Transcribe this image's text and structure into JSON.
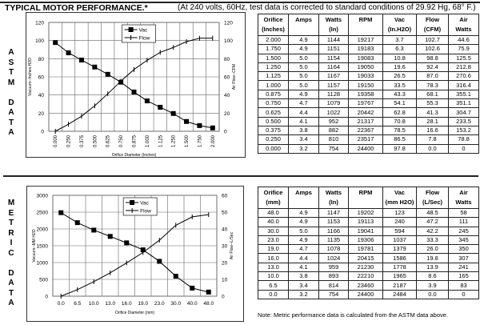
{
  "header": {
    "title": "TYPICAL MOTOR PERFORMANCE.*",
    "subtitle": "(At 240 volts, 60Hz, test data is corrected to standard conditions of 29.92 Hg, 68° F.)"
  },
  "astm": {
    "side_label": [
      "A",
      "S",
      "T",
      "M",
      "",
      "D",
      "A",
      "T",
      "A"
    ],
    "columns": [
      [
        "Orifice",
        "(Inches)"
      ],
      [
        "Amps",
        ""
      ],
      [
        "Watts",
        "(In)"
      ],
      [
        "RPM",
        ""
      ],
      [
        "Vac",
        "(In.H2O)"
      ],
      [
        "Flow",
        "(CFM)"
      ],
      [
        "Air",
        "Watts"
      ]
    ],
    "rows": [
      [
        "2.000",
        "4.9",
        "1144",
        "19217",
        "3.7",
        "102.7",
        "44.6"
      ],
      [
        "1.750",
        "4.9",
        "1151",
        "19183",
        "6.3",
        "102.6",
        "75.9"
      ],
      [
        "1.500",
        "5.0",
        "1154",
        "19083",
        "10.8",
        "98.8",
        "125.5"
      ],
      [
        "1.250",
        "5.0",
        "1164",
        "19050",
        "19.6",
        "92.4",
        "212.8"
      ],
      [
        "1.125",
        "5.0",
        "1167",
        "19033",
        "26.5",
        "87.0",
        "270.6"
      ],
      [
        "1.000",
        "5.0",
        "1157",
        "19150",
        "33.5",
        "78.3",
        "316.4"
      ],
      [
        "0.875",
        "4.9",
        "1128",
        "19358",
        "43.3",
        "68.1",
        "355.1"
      ],
      [
        "0.750",
        "4.7",
        "1079",
        "19767",
        "54.1",
        "55.3",
        "351.1"
      ],
      [
        "0.625",
        "4.4",
        "1022",
        "20442",
        "62.8",
        "41.3",
        "304.7"
      ],
      [
        "0.500",
        "4.1",
        "952",
        "21317",
        "70.8",
        "28.1",
        "233.5"
      ],
      [
        "0.375",
        "3.8",
        "882",
        "22367",
        "78.5",
        "16.6",
        "153.2"
      ],
      [
        "0.250",
        "3.4",
        "810",
        "23517",
        "86.5",
        "7.8",
        "78.8"
      ],
      [
        "0.000",
        "3.2",
        "754",
        "24400",
        "97.8",
        "0.0",
        "0"
      ]
    ]
  },
  "metric": {
    "side_label": [
      "M",
      "E",
      "T",
      "R",
      "I",
      "C",
      "",
      "D",
      "A",
      "T",
      "A"
    ],
    "columns": [
      [
        "Orifice",
        "(mm)"
      ],
      [
        "Amps",
        ""
      ],
      [
        "Watts",
        "(In)"
      ],
      [
        "RPM",
        ""
      ],
      [
        "Vac",
        "(mm H2O)"
      ],
      [
        "Flow",
        "(L/Sec)"
      ],
      [
        "Air",
        "Watts"
      ]
    ],
    "rows": [
      [
        "48.0",
        "4.9",
        "1147",
        "19202",
        "123",
        "48.5",
        "58"
      ],
      [
        "40.0",
        "4.9",
        "1153",
        "19113",
        "240",
        "47.2",
        "111"
      ],
      [
        "30.0",
        "5.0",
        "1166",
        "19041",
        "594",
        "42.2",
        "245"
      ],
      [
        "23.0",
        "4.9",
        "1135",
        "19306",
        "1037",
        "33.3",
        "345"
      ],
      [
        "19.0",
        "4.7",
        "1078",
        "19781",
        "1379",
        "26.0",
        "350"
      ],
      [
        "16.0",
        "4.4",
        "1024",
        "20415",
        "1586",
        "19.8",
        "307"
      ],
      [
        "13.0",
        "4.1",
        "959",
        "21230",
        "1778",
        "13.9",
        "241"
      ],
      [
        "10.0",
        "3.8",
        "893",
        "22210",
        "1965",
        "8.6",
        "165"
      ],
      [
        "6.5",
        "3.4",
        "814",
        "23460",
        "2187",
        "3.9",
        "83"
      ],
      [
        "0.0",
        "3.2",
        "754",
        "24400",
        "2484",
        "0.0",
        "0"
      ]
    ],
    "note": "Note:  Metric performance data is calculated from the ASTM data above."
  },
  "chart_data": [
    {
      "type": "line",
      "xlabel": "Orifice Diameter (Inches)",
      "ylabel": "Vacuum--Inches H2O",
      "y2label": "Air Flow--CFM",
      "ylim": [
        0,
        120
      ],
      "y2lim": [
        0,
        120
      ],
      "yticks": [
        "0",
        "20",
        "40",
        "60",
        "80",
        "100",
        "120"
      ],
      "y2ticks": [
        "0",
        "20",
        "40",
        "60",
        "80",
        "100",
        "120"
      ],
      "rotate_x": true,
      "categories": [
        "0.000",
        "0.250",
        "0.375",
        "0.500",
        "0.625",
        "0.750",
        "0.875",
        "1.000",
        "1.125",
        "1.250",
        "1.500",
        "1.750",
        "2.000"
      ],
      "series": [
        {
          "name": "Vac",
          "axis": "left",
          "marker": "square",
          "values": [
            97.8,
            86.5,
            78.5,
            70.8,
            62.8,
            54.1,
            43.3,
            33.5,
            26.5,
            19.6,
            10.8,
            6.3,
            3.7
          ]
        },
        {
          "name": "Flow",
          "axis": "right",
          "marker": "tick",
          "values": [
            0,
            7.8,
            16.6,
            28.1,
            41.3,
            55.3,
            68.1,
            78.3,
            87.0,
            92.4,
            98.8,
            102.6,
            102.7
          ]
        }
      ],
      "legend": "top-center",
      "grid": true
    },
    {
      "type": "line",
      "xlabel": "Orifice Diameter (mm)",
      "ylabel": "Vacuum--MM H2O",
      "y2label": "Air Flow--L/Sec",
      "ylim": [
        0,
        3000
      ],
      "y2lim": [
        0,
        60
      ],
      "yticks": [
        "0",
        "500",
        "1000",
        "1500",
        "2000",
        "2500",
        "3000"
      ],
      "y2ticks": [
        "0",
        "10",
        "20",
        "30",
        "40",
        "50",
        "60"
      ],
      "rotate_x": false,
      "categories": [
        "0.0",
        "6.5",
        "10.0",
        "13.0",
        "16.0",
        "19.0",
        "23.0",
        "30.0",
        "40.0",
        "48.0"
      ],
      "series": [
        {
          "name": "Vac",
          "axis": "left",
          "marker": "square",
          "values": [
            2484,
            2187,
            1965,
            1778,
            1586,
            1379,
            1037,
            594,
            240,
            123
          ]
        },
        {
          "name": "Flow",
          "axis": "right",
          "marker": "tick",
          "values": [
            0,
            3.9,
            8.6,
            13.9,
            19.8,
            26.0,
            33.3,
            42.2,
            47.2,
            48.5
          ]
        }
      ],
      "legend": "top-center",
      "grid": true
    }
  ]
}
